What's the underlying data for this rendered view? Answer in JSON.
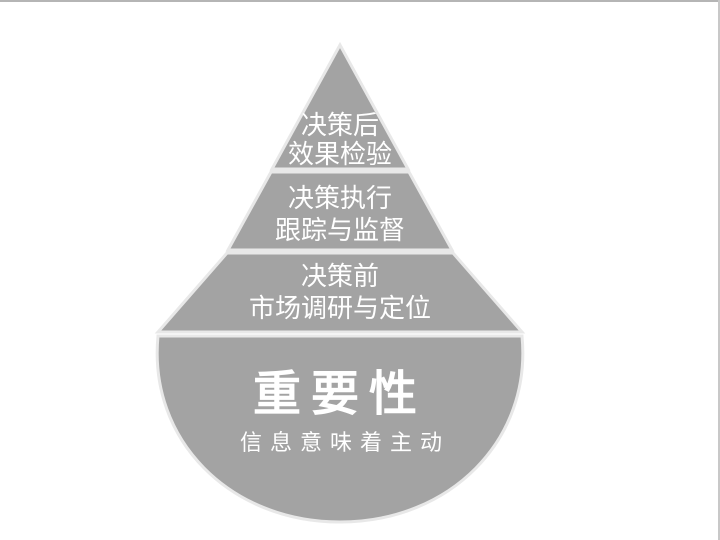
{
  "diagram": {
    "levels": [
      {
        "line1": "决策后",
        "line2": "效果检验"
      },
      {
        "line1": "决策执行",
        "line2": "跟踪与监督"
      },
      {
        "line1": "决策前",
        "line2": "市场调研与定位"
      }
    ],
    "base": {
      "title": "重要性",
      "subtitle": "信息意味着主动"
    },
    "colors": {
      "fill": "#a3a3a3",
      "outline": "#e8e8e8",
      "text": "#ffffff"
    }
  }
}
